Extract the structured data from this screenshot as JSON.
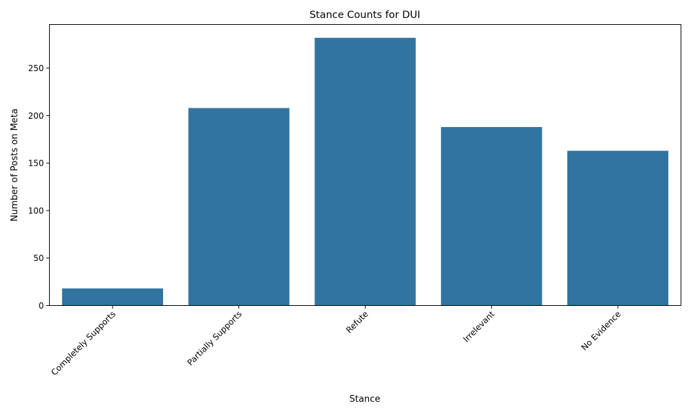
{
  "chart_data": {
    "type": "bar",
    "title": "Stance Counts for DUI",
    "xlabel": "Stance",
    "ylabel": "Number of Posts on Meta",
    "categories": [
      "Completely Supports",
      "Partially Supports",
      "Refute",
      "Irrelevant",
      "No Evidence"
    ],
    "values": [
      18,
      208,
      282,
      188,
      163
    ],
    "ylim": [
      0,
      296
    ],
    "yticks": [
      0,
      50,
      100,
      150,
      200,
      250
    ],
    "grid": false,
    "legend": "none",
    "bar_color": "#3274a1"
  }
}
